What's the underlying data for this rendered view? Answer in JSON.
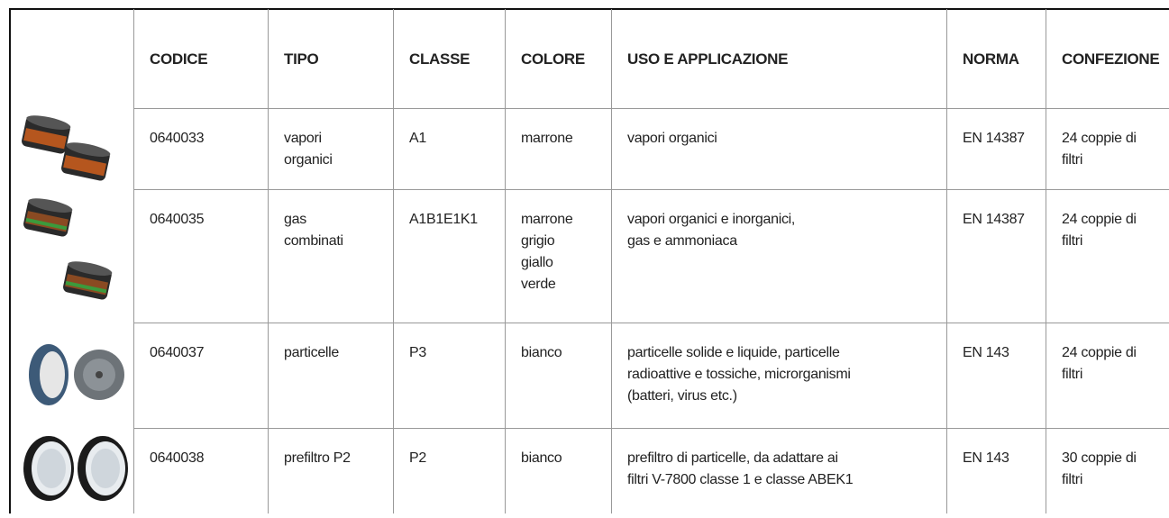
{
  "table": {
    "header": [
      "CODICE",
      "TIPO",
      "CLASSE",
      "COLORE",
      "USO E APPLICAZIONE",
      "NORMA",
      "CONFEZIONE"
    ],
    "rows": [
      [
        "0640033",
        "vapori\norganici",
        "A1",
        "marrone",
        "vapori organici",
        "EN 14387",
        "24 coppie di\nfiltri"
      ],
      [
        "0640035",
        "gas\ncombinati",
        "A1B1E1K1",
        "marrone\ngrigio\ngiallo\nverde",
        "vapori organici e inorganici,\ngas e ammoniaca",
        "EN 14387",
        "24 coppie di\nfiltri"
      ],
      [
        "0640037",
        "particelle",
        "P3",
        "bianco",
        "particelle solide e liquide, particelle\nradioattive e tossiche, microrganismi\n(batteri, virus etc.)",
        "EN 143",
        "24 coppie di\nfiltri"
      ],
      [
        "0640038",
        "prefiltro P2",
        "P2",
        "bianco",
        "prefiltro di particelle, da adattare ai\nfiltri V-7800 classe 1 e classe ABEK1",
        "EN 143",
        "30 coppie di\nfiltri"
      ]
    ]
  }
}
